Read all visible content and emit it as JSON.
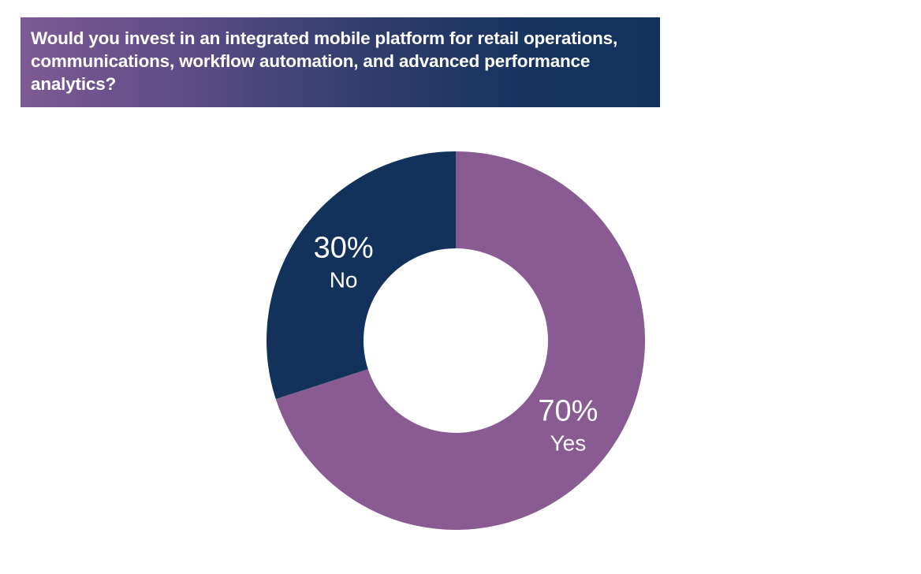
{
  "chart_data": {
    "type": "pie",
    "variant": "donut",
    "title": "Would you invest in an integrated mobile platform for retail operations, communications, workflow automation, and advanced performance analytics?",
    "slices": [
      {
        "label": "Yes",
        "value": 70,
        "value_label": "70%",
        "color": "#8a5a92"
      },
      {
        "label": "No",
        "value": 30,
        "value_label": "30%",
        "color": "#12325c"
      }
    ],
    "start_angle_deg": 0,
    "direction": "clockwise",
    "legend": "none",
    "title_colors": [
      "#7e5a94",
      "#12325c"
    ]
  }
}
